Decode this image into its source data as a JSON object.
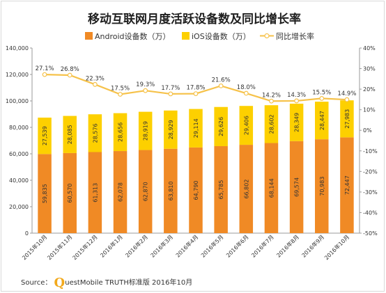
{
  "source": {
    "prefix": "Source：",
    "brand_letter": "Q",
    "text": "uestMobile TRUTH标准版 2016年10月"
  },
  "colors": {
    "android": "#f08a25",
    "ios": "#fdd000",
    "line": "#f6c24a",
    "marker_fill": "#ffffff"
  },
  "chart_data": {
    "type": "bar",
    "stacked": true,
    "title": "移动互联网月度活跃设备数及同比增长率",
    "categories": [
      "2015年10月",
      "2015年11月",
      "2015年12月",
      "2016年1月",
      "2016年2月",
      "2016年3月",
      "2016年4月",
      "2016年5月",
      "2016年6月",
      "2016年7月",
      "2016年8月",
      "2016年9月",
      "2016年10月"
    ],
    "series": [
      {
        "name": "Android设备数（万）",
        "type": "bar",
        "axis": "left",
        "values": [
          59835,
          60570,
          61313,
          62078,
          62870,
          63810,
          64790,
          65785,
          66802,
          68144,
          69574,
          70983,
          72447
        ],
        "labels": [
          "59,835",
          "60,570",
          "61,313",
          "62,078",
          "62,870",
          "63,810",
          "64,790",
          "65,785",
          "66,802",
          "68,144",
          "69,574",
          "70,983",
          "72,447"
        ]
      },
      {
        "name": "iOS设备数（万）",
        "type": "bar",
        "axis": "left",
        "values": [
          27539,
          28085,
          28576,
          28656,
          28919,
          28929,
          29114,
          29626,
          29406,
          28602,
          28349,
          28447,
          27983
        ],
        "labels": [
          "27,539",
          "28,085",
          "28,576",
          "28,656",
          "28,919",
          "28,929",
          "29,114",
          "29,626",
          "29,406",
          "28,602",
          "28,349",
          "28,447",
          "27,983"
        ]
      },
      {
        "name": "同比增长率",
        "type": "line",
        "axis": "right",
        "values": [
          27.1,
          26.8,
          22.3,
          17.5,
          19.3,
          17.7,
          17.8,
          21.6,
          18.0,
          14.2,
          14.3,
          15.5,
          14.9
        ],
        "labels": [
          "27.1%",
          "26.8%",
          "22.3%",
          "17.5%",
          "19.3%",
          "17.7%",
          "17.8%",
          "21.6%",
          "18.0%",
          "14.2%",
          "14.3%",
          "15.5%",
          "14.9%"
        ]
      }
    ],
    "y_left": {
      "min": 0,
      "max": 140000,
      "ticks": [
        "0",
        "20,000",
        "40,000",
        "60,000",
        "80,000",
        "100,000",
        "120,000",
        "140,000"
      ]
    },
    "y_right": {
      "min": -50,
      "max": 40,
      "ticks": [
        "-50%",
        "-40%",
        "-30%",
        "-20%",
        "-10%",
        "0%",
        "10%",
        "20%",
        "30%",
        "40%"
      ]
    },
    "legend_position": "top",
    "grid": false
  }
}
